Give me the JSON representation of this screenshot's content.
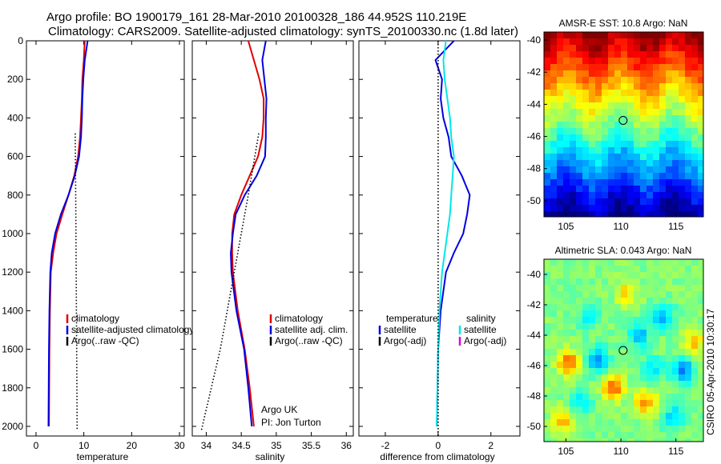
{
  "header": {
    "title_line1": "Argo profile: BO 1900179_161 28-Mar-2010 20100328_186 44.952S 110.219E",
    "title_line2": "Climatology: CARS2009. Satellite-adjusted climatology: synTS_20100330.nc (1.8d later)"
  },
  "side_stamp": "CSIRO 05-Apr-2010 10:30:17",
  "colors": {
    "climatology": "#e00000",
    "satellite": "#0000e0",
    "argo": "#000000",
    "satellite_cyan": "#00e8e8",
    "argo_adj_sal": "#e000e0"
  },
  "chart_data": [
    {
      "type": "line",
      "name": "temperature panel",
      "xlabel": "temperature",
      "ylabel": "",
      "xlim": [
        -2,
        31
      ],
      "ylim": [
        2050,
        0
      ],
      "xticks": [
        0,
        10,
        20,
        30
      ],
      "yticks": [
        0,
        200,
        400,
        600,
        800,
        1000,
        1200,
        1400,
        1600,
        1800,
        2000
      ],
      "series": [
        {
          "name": "climatology",
          "color": "#e00000",
          "style": "solid",
          "x": [
            10.2,
            10.0,
            9.7,
            9.6,
            9.4,
            9.2,
            8.8,
            8.0,
            6.8,
            5.5,
            4.3,
            3.6,
            3.1,
            2.9,
            2.8,
            2.7
          ],
          "y": [
            0,
            100,
            200,
            300,
            400,
            500,
            600,
            700,
            800,
            900,
            1000,
            1100,
            1200,
            1400,
            1600,
            2000
          ]
        },
        {
          "name": "satellite-adjusted climatology",
          "color": "#0000e0",
          "style": "solid",
          "x": [
            10.8,
            10.2,
            9.9,
            9.7,
            9.6,
            9.4,
            9.0,
            8.1,
            6.8,
            5.2,
            4.0,
            3.3,
            3.0,
            2.8,
            2.7,
            2.6
          ],
          "y": [
            0,
            100,
            200,
            300,
            400,
            500,
            600,
            700,
            800,
            900,
            1000,
            1100,
            1200,
            1400,
            1600,
            2000
          ]
        },
        {
          "name": "Argo(..raw -QC)",
          "color": "#000000",
          "style": "dotted",
          "x": [
            8.2,
            8.3,
            8.4,
            8.5,
            8.6
          ],
          "y": [
            480,
            800,
            1200,
            1600,
            2020
          ]
        }
      ],
      "legend": {
        "placement": "lower-left",
        "entries": [
          {
            "label": "climatology",
            "color": "#e00000"
          },
          {
            "label": "satellite-adjusted climatology",
            "color": "#0000e0"
          },
          {
            "label": "Argo(..raw -QC)",
            "color": "#000000"
          }
        ]
      }
    },
    {
      "type": "line",
      "name": "salinity panel",
      "xlabel": "salinity",
      "xlim": [
        33.8,
        36.1
      ],
      "ylim": [
        2050,
        0
      ],
      "xticks": [
        34,
        34.5,
        35,
        35.5,
        36
      ],
      "series": [
        {
          "name": "climatology",
          "color": "#e00000",
          "style": "solid",
          "x": [
            34.6,
            34.68,
            34.76,
            34.82,
            34.82,
            34.8,
            34.74,
            34.62,
            34.5,
            34.4,
            34.37,
            34.37,
            34.38,
            34.45,
            34.55,
            34.62,
            34.68
          ],
          "y": [
            0,
            100,
            200,
            300,
            400,
            500,
            600,
            700,
            800,
            900,
            1000,
            1100,
            1200,
            1400,
            1600,
            1800,
            2000
          ]
        },
        {
          "name": "satellite adj. clim.",
          "color": "#0000e0",
          "style": "solid",
          "x": [
            34.85,
            34.8,
            34.83,
            34.86,
            34.85,
            34.85,
            34.84,
            34.72,
            34.55,
            34.42,
            34.38,
            34.35,
            34.36,
            34.43,
            34.54,
            34.6,
            34.65
          ],
          "y": [
            0,
            100,
            200,
            300,
            400,
            500,
            600,
            700,
            800,
            900,
            1000,
            1100,
            1200,
            1400,
            1600,
            1800,
            2000
          ]
        },
        {
          "name": "Argo(..raw -QC)",
          "color": "#000000",
          "style": "dotted",
          "x": [
            34.75,
            34.6,
            34.4,
            34.2,
            33.93
          ],
          "y": [
            480,
            800,
            1200,
            1600,
            2020
          ]
        }
      ],
      "annotation": {
        "line1": "Argo UK",
        "line2": "PI: Jon Turton"
      },
      "legend": {
        "placement": "lower-right",
        "entries": [
          {
            "label": "climatology",
            "color": "#e00000"
          },
          {
            "label": "satellite adj. clim.",
            "color": "#0000e0"
          },
          {
            "label": "Argo(..raw -QC)",
            "color": "#000000"
          }
        ]
      }
    },
    {
      "type": "line",
      "name": "difference panel",
      "xlabel": "difference from climatology",
      "xlim": [
        -3,
        3.1
      ],
      "ylim": [
        2050,
        0
      ],
      "xticks": [
        -2,
        0,
        2
      ],
      "xtick_labels": [
        "-2",
        "0",
        "2"
      ],
      "series": [
        {
          "name": "temperature satellite",
          "color": "#0000e0",
          "style": "solid",
          "x": [
            0.6,
            -0.1,
            0.15,
            0.1,
            0.2,
            0.4,
            0.5,
            0.9,
            1.2,
            1.1,
            0.95,
            0.6,
            0.3,
            0.1,
            0.0,
            -0.05
          ],
          "y": [
            0,
            100,
            200,
            300,
            400,
            500,
            600,
            700,
            800,
            900,
            1000,
            1100,
            1200,
            1400,
            1600,
            2000
          ]
        },
        {
          "name": "salinity satellite",
          "color": "#00e8e8",
          "style": "solid",
          "x": [
            0.3,
            0.2,
            0.25,
            0.35,
            0.45,
            0.5,
            0.6,
            0.55,
            0.5,
            0.45,
            0.35,
            0.25,
            0.15,
            0.05,
            0.0,
            -0.05
          ],
          "y": [
            0,
            100,
            200,
            300,
            400,
            500,
            600,
            700,
            800,
            900,
            1000,
            1100,
            1200,
            1400,
            1600,
            2000
          ]
        },
        {
          "name": "zero line",
          "color": "#000000",
          "style": "dotted",
          "x": [
            0,
            0
          ],
          "y": [
            0,
            2050
          ]
        }
      ],
      "legend": {
        "placement": "lower-center",
        "columns": [
          {
            "heading": "temperature",
            "entries": [
              {
                "label": "satellite",
                "color": "#0000e0"
              },
              {
                "label": "Argo(-adj)",
                "color": "#000000"
              }
            ]
          },
          {
            "heading": "salinity",
            "entries": [
              {
                "label": "satellite",
                "color": "#00e8e8"
              },
              {
                "label": "Argo(-adj)",
                "color": "#e000e0"
              }
            ]
          }
        ]
      }
    },
    {
      "type": "heatmap",
      "name": "sst map",
      "title": "AMSR-E SST: 10.8 Argo: NaN",
      "xlim": [
        103,
        117.5
      ],
      "ylim": [
        -51,
        -39.5
      ],
      "xticks": [
        105,
        110,
        115
      ],
      "yticks": [
        -40,
        -42,
        -44,
        -46,
        -48,
        -50
      ],
      "marker": {
        "lon": 110.2,
        "lat": -45.0
      }
    },
    {
      "type": "heatmap",
      "name": "sla map",
      "title": "Altimetric SLA: 0.043 Argo: NaN",
      "xlim": [
        103,
        117.5
      ],
      "ylim": [
        -51,
        -39
      ],
      "xticks": [
        105,
        110,
        115
      ],
      "yticks": [
        -40,
        -42,
        -44,
        -46,
        -48,
        -50
      ],
      "marker": {
        "lon": 110.2,
        "lat": -45.0
      }
    }
  ]
}
